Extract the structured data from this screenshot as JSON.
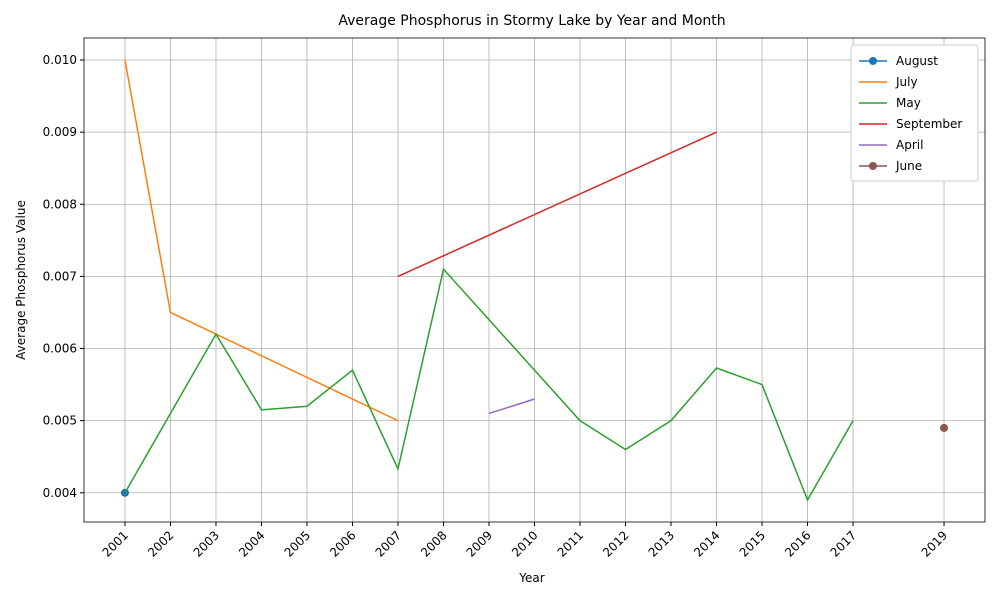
{
  "chart_data": {
    "type": "line",
    "title": "Average Phosphorus in Stormy Lake by Year and Month",
    "x_label": "Year",
    "y_label": "Average Phosphorus Value",
    "xlim": [
      2000.1,
      2019.9
    ],
    "xticks": [
      2001,
      2002,
      2003,
      2004,
      2005,
      2006,
      2007,
      2008,
      2009,
      2010,
      2011,
      2012,
      2013,
      2014,
      2015,
      2016,
      2017,
      2019
    ],
    "ylim": [
      0.003595,
      0.010305
    ],
    "yticks": [
      0.004,
      0.005,
      0.006,
      0.007,
      0.008,
      0.009,
      {
        "value": 0.01,
        "label": "0.010"
      }
    ],
    "grid": true,
    "legend": "upper right",
    "series": [
      {
        "name": "August",
        "color": "#1f77b4",
        "marker": true,
        "x": [
          2001
        ],
        "values": [
          0.004
        ]
      },
      {
        "name": "July",
        "color": "#ff7f0e",
        "marker": false,
        "x": [
          2001,
          2002,
          2007
        ],
        "values": [
          0.01,
          0.0065,
          0.005
        ]
      },
      {
        "name": "May",
        "color": "#2ca02c",
        "marker": false,
        "x": [
          2001,
          2003,
          2004,
          2005,
          2006,
          2007,
          2008,
          2011,
          2012,
          2013,
          2014,
          2015,
          2016,
          2017
        ],
        "values": [
          0.004,
          0.0062,
          0.00515,
          0.0052,
          0.0057,
          0.00433,
          0.0071,
          0.005,
          0.0046,
          0.005,
          0.00573,
          0.0055,
          0.0039,
          0.005
        ]
      },
      {
        "name": "September",
        "color": "#d62728",
        "marker": false,
        "x": [
          2007,
          2014
        ],
        "values": [
          0.007,
          0.009
        ]
      },
      {
        "name": "April",
        "color": "#9467bd",
        "marker": false,
        "x": [
          2009,
          2010
        ],
        "values": [
          0.0051,
          0.0053
        ]
      },
      {
        "name": "June",
        "color": "#8c564b",
        "marker": true,
        "x": [
          2019
        ],
        "values": [
          0.0049
        ]
      }
    ]
  }
}
